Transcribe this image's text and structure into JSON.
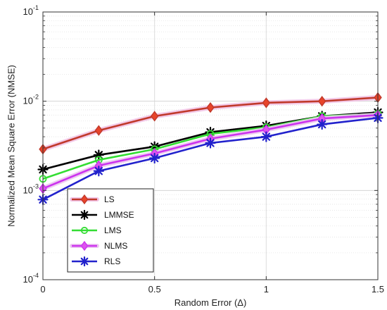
{
  "chart_data": {
    "type": "line",
    "title": "",
    "xlabel": "Random Error (Δ)",
    "ylabel": "Normalized Mean Square Error (NMSE)",
    "xlim": [
      0,
      1.5
    ],
    "ylim": [
      0.0001,
      0.1
    ],
    "yscale": "log",
    "x": [
      0,
      0.25,
      0.5,
      0.75,
      1,
      1.25,
      1.5
    ],
    "x_tick_labels": [
      "0",
      "0.5",
      "1",
      "1.5"
    ],
    "x_tick_values": [
      0,
      0.5,
      1,
      1.5
    ],
    "y_tick_labels": [
      {
        "base": "10",
        "exp": "-4"
      },
      {
        "base": "10",
        "exp": "-3"
      },
      {
        "base": "10",
        "exp": "-2"
      },
      {
        "base": "10",
        "exp": "-1"
      }
    ],
    "y_tick_values": [
      0.0001,
      0.001,
      0.01,
      0.1
    ],
    "grid": true,
    "legend_position": "bottom-left",
    "series": [
      {
        "name": "LS",
        "color": "#c0392b",
        "glow": "#f2c4e6",
        "marker": "diamond",
        "marker_fill": "#e8442a",
        "values": [
          0.0029,
          0.0047,
          0.0068,
          0.0085,
          0.0096,
          0.01,
          0.011
        ]
      },
      {
        "name": "LMMSE",
        "color": "#000000",
        "glow": null,
        "marker": "asterisk",
        "marker_fill": "#000000",
        "values": [
          0.00172,
          0.0025,
          0.0031,
          0.0045,
          0.0053,
          0.0068,
          0.0075
        ]
      },
      {
        "name": "LMS",
        "color": "#33dd33",
        "glow": null,
        "marker": "circle",
        "marker_fill": "none",
        "values": [
          0.00135,
          0.0022,
          0.0029,
          0.0043,
          0.0051,
          0.0068,
          0.0072
        ]
      },
      {
        "name": "NLMS",
        "color": "#cc33ee",
        "glow": "#ecc8f0",
        "marker": "diamond",
        "marker_fill": "#dd55ee",
        "values": [
          0.00105,
          0.0019,
          0.0026,
          0.0038,
          0.0048,
          0.0064,
          0.007
        ]
      },
      {
        "name": "RLS",
        "color": "#2222cc",
        "glow": null,
        "marker": "asterisk",
        "marker_fill": "#2233cc",
        "values": [
          0.00079,
          0.00165,
          0.0023,
          0.0034,
          0.004,
          0.0055,
          0.0065
        ]
      }
    ]
  }
}
